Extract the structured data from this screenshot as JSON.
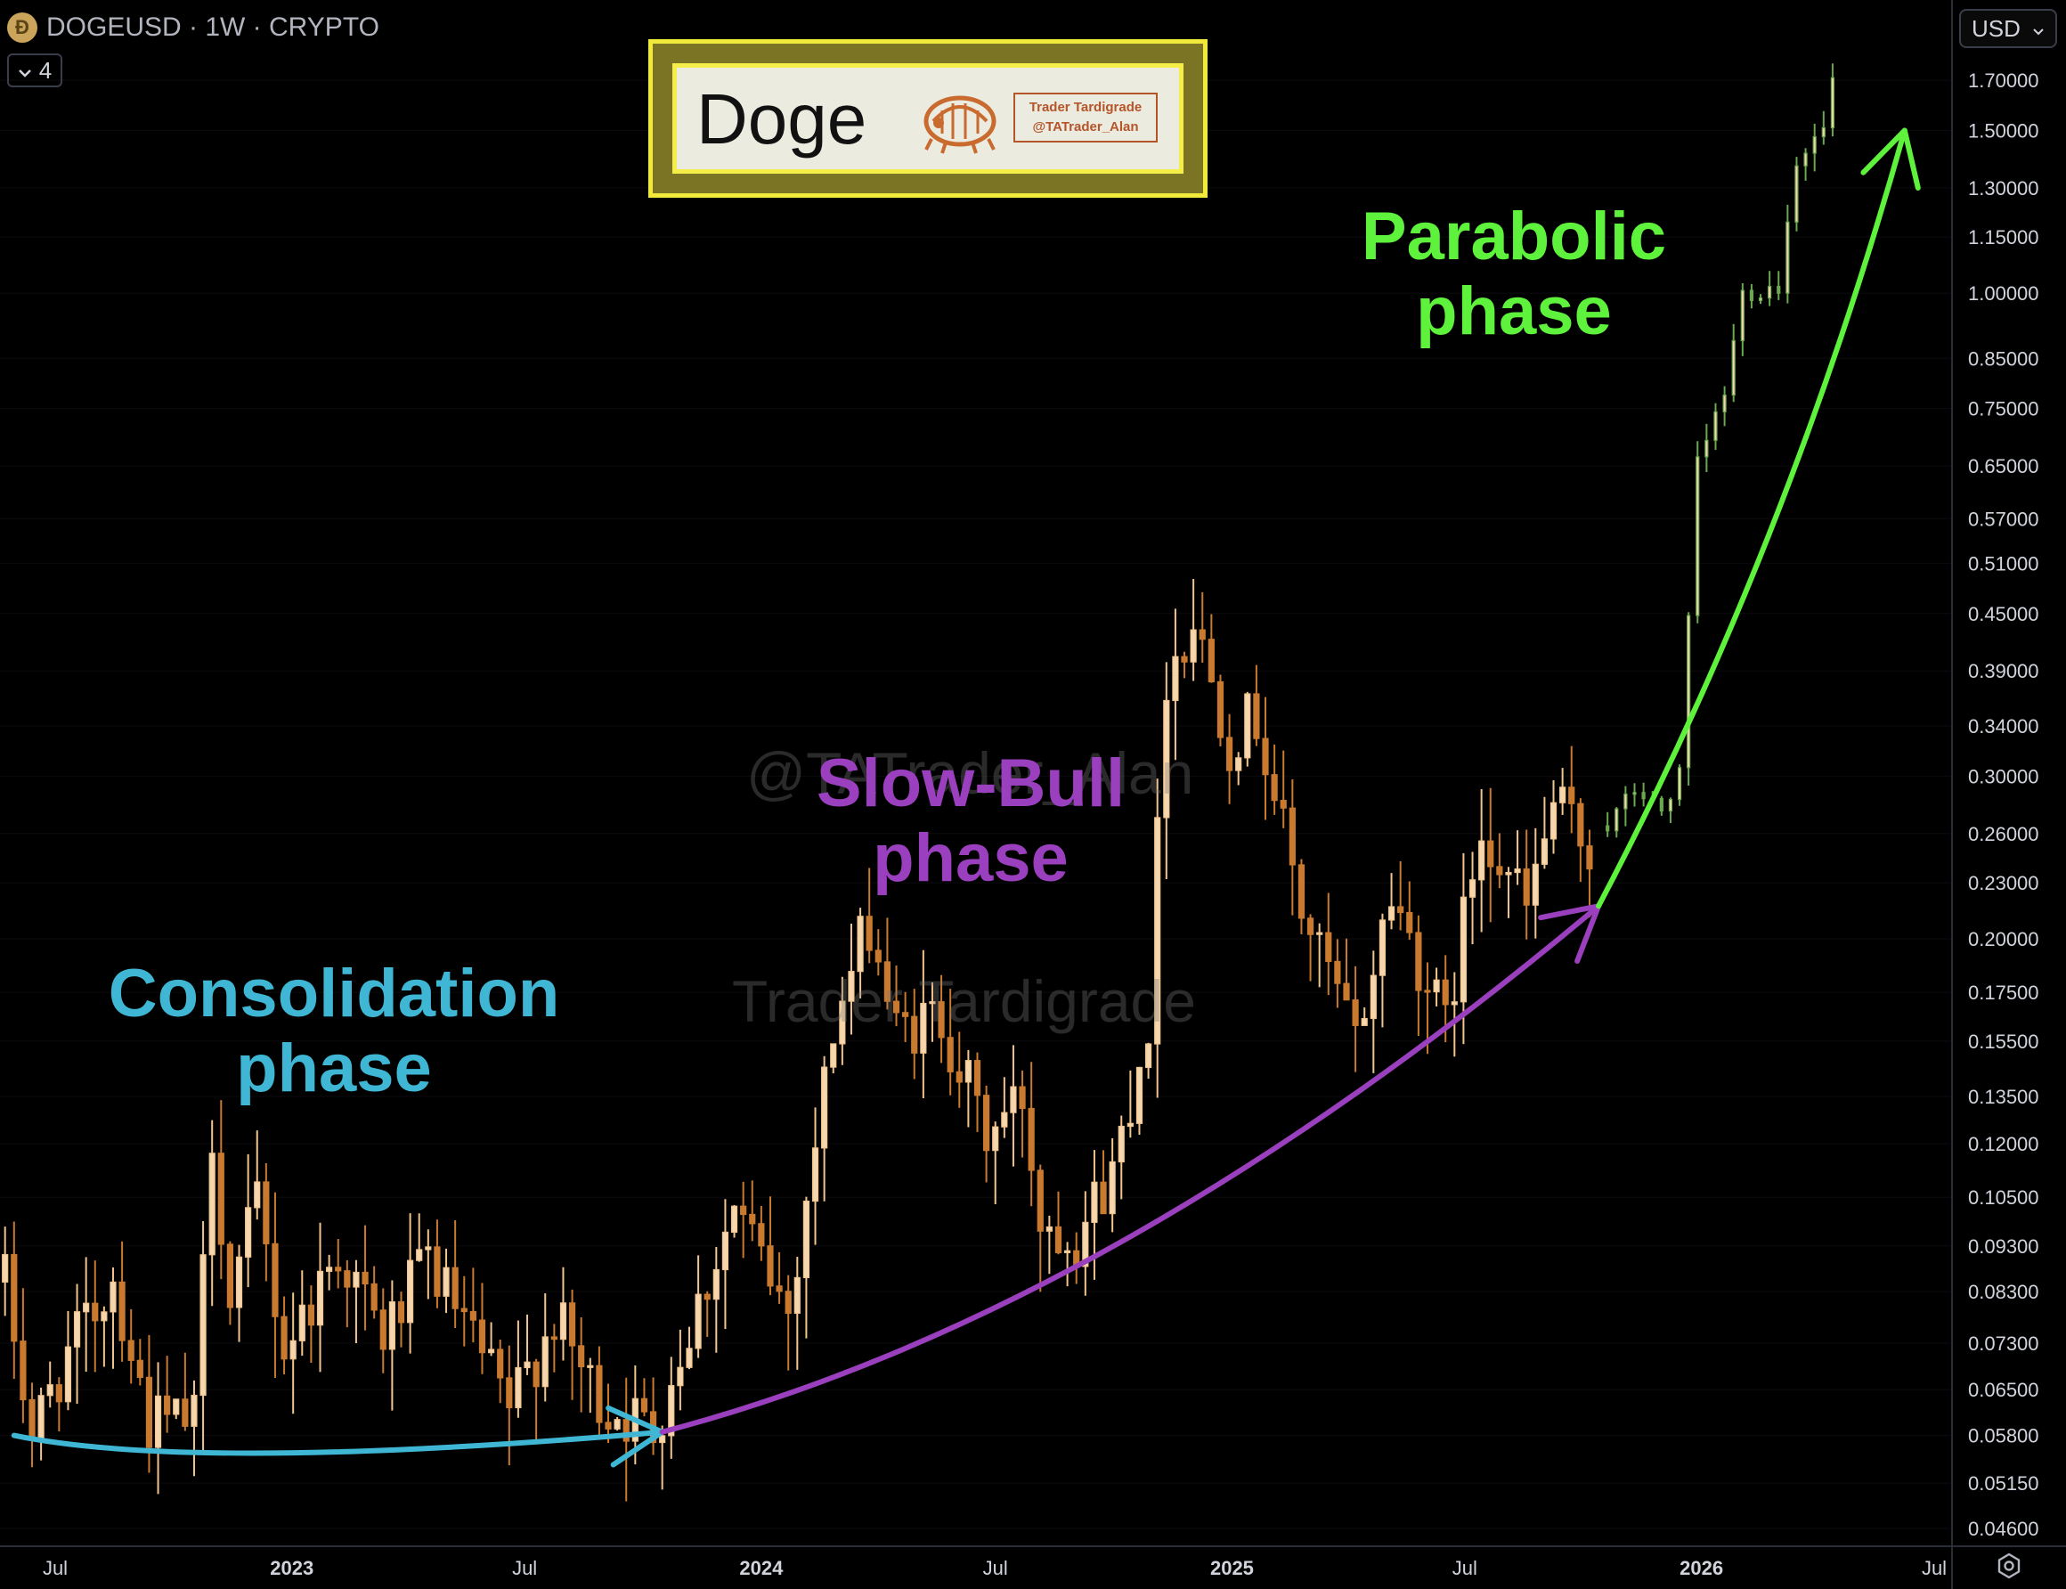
{
  "header": {
    "symbol": "DOGEUSD · 1W · CRYPTO",
    "indicator_count": "4",
    "currency": "USD"
  },
  "brand": {
    "title": "Doge",
    "tag_line1": "Trader Tardigrade",
    "tag_line2": "@TATrader_Alan"
  },
  "watermarks": [
    "@TATrader_Alan",
    "Trader Tardigrade"
  ],
  "phases": {
    "consolidation": [
      "Consolidation",
      "phase"
    ],
    "slow_bull": [
      "Slow-Bull",
      "phase"
    ],
    "parabolic": [
      "Parabolic",
      "phase"
    ]
  },
  "colors": {
    "bull_candle": "#f2c58f",
    "bear_candle": "#c97a2e",
    "projection_candle": "#6aa84f",
    "consolidation": "#3fb7d4",
    "slow_bull": "#9a3fbd",
    "parabolic": "#5ef23c"
  },
  "chart_data": {
    "type": "candlestick",
    "interval": "1W",
    "y_scale": "log",
    "ylim": [
      0.044,
      1.9
    ],
    "y_ticks": [
      "1.70000",
      "1.50000",
      "1.30000",
      "1.15000",
      "1.00000",
      "0.85000",
      "0.75000",
      "0.65000",
      "0.57000",
      "0.51000",
      "0.45000",
      "0.39000",
      "0.34000",
      "0.30000",
      "0.26000",
      "0.23000",
      "0.20000",
      "0.17500",
      "0.15500",
      "0.13500",
      "0.12000",
      "0.10500",
      "0.09300",
      "0.08300",
      "0.07300",
      "0.06500",
      "0.05800",
      "0.05150",
      "0.04600"
    ],
    "x_ticks": [
      {
        "label": "Jul",
        "date": "2022-07-01"
      },
      {
        "label": "2023",
        "date": "2023-01-01"
      },
      {
        "label": "Jul",
        "date": "2023-07-01"
      },
      {
        "label": "2024",
        "date": "2024-01-01"
      },
      {
        "label": "Jul",
        "date": "2024-07-01"
      },
      {
        "label": "2025",
        "date": "2025-01-01"
      },
      {
        "label": "Jul",
        "date": "2025-07-01"
      },
      {
        "label": "2026",
        "date": "2026-01-01"
      },
      {
        "label": "Jul",
        "date": "2026-07-01"
      }
    ],
    "price_path": [
      {
        "date": "2022-05-23",
        "close": 0.085
      },
      {
        "date": "2022-06-13",
        "close": 0.058
      },
      {
        "date": "2022-07-04",
        "close": 0.068
      },
      {
        "date": "2022-08-15",
        "close": 0.086
      },
      {
        "date": "2022-09-12",
        "close": 0.06
      },
      {
        "date": "2022-10-17",
        "close": 0.06
      },
      {
        "date": "2022-10-31",
        "close": 0.125
      },
      {
        "date": "2022-11-14",
        "close": 0.08
      },
      {
        "date": "2022-12-05",
        "close": 0.104
      },
      {
        "date": "2022-12-26",
        "close": 0.072
      },
      {
        "date": "2023-02-06",
        "close": 0.092
      },
      {
        "date": "2023-03-13",
        "close": 0.074
      },
      {
        "date": "2023-04-17",
        "close": 0.09
      },
      {
        "date": "2023-05-29",
        "close": 0.07
      },
      {
        "date": "2023-06-19",
        "close": 0.062
      },
      {
        "date": "2023-07-24",
        "close": 0.078
      },
      {
        "date": "2023-08-28",
        "close": 0.063
      },
      {
        "date": "2023-10-09",
        "close": 0.059
      },
      {
        "date": "2023-11-06",
        "close": 0.076
      },
      {
        "date": "2023-12-11",
        "close": 0.102
      },
      {
        "date": "2024-01-22",
        "close": 0.079
      },
      {
        "date": "2024-02-26",
        "close": 0.16
      },
      {
        "date": "2024-03-25",
        "close": 0.21
      },
      {
        "date": "2024-04-15",
        "close": 0.158
      },
      {
        "date": "2024-05-20",
        "close": 0.165
      },
      {
        "date": "2024-06-24",
        "close": 0.122
      },
      {
        "date": "2024-07-22",
        "close": 0.135
      },
      {
        "date": "2024-08-05",
        "close": 0.1
      },
      {
        "date": "2024-09-02",
        "close": 0.096
      },
      {
        "date": "2024-09-30",
        "close": 0.112
      },
      {
        "date": "2024-10-28",
        "close": 0.165
      },
      {
        "date": "2024-11-11",
        "close": 0.39
      },
      {
        "date": "2024-12-02",
        "close": 0.445
      },
      {
        "date": "2024-12-30",
        "close": 0.33
      },
      {
        "date": "2025-01-20",
        "close": 0.35
      },
      {
        "date": "2025-02-24",
        "close": 0.215
      },
      {
        "date": "2025-04-07",
        "close": 0.155
      },
      {
        "date": "2025-05-05",
        "close": 0.225
      },
      {
        "date": "2025-06-16",
        "close": 0.16
      },
      {
        "date": "2025-07-14",
        "close": 0.27
      },
      {
        "date": "2025-08-18",
        "close": 0.215
      },
      {
        "date": "2025-09-08",
        "close": 0.28
      },
      {
        "date": "2025-10-06",
        "close": 0.25
      }
    ],
    "projection_path": [
      {
        "date": "2025-10-20",
        "close": 0.265
      },
      {
        "date": "2025-11-10",
        "close": 0.29
      },
      {
        "date": "2025-12-01",
        "close": 0.275
      },
      {
        "date": "2025-12-15",
        "close": 0.3
      },
      {
        "date": "2025-12-29",
        "close": 0.65
      },
      {
        "date": "2026-01-19",
        "close": 0.78
      },
      {
        "date": "2026-02-02",
        "close": 1.0
      },
      {
        "date": "2026-03-02",
        "close": 1.02
      },
      {
        "date": "2026-03-16",
        "close": 1.4
      },
      {
        "date": "2026-04-06",
        "close": 1.5
      },
      {
        "date": "2026-04-13",
        "close": 1.7
      }
    ],
    "curves": [
      {
        "name": "Consolidation phase",
        "points": [
          [
            "2022-05-30",
            0.058
          ],
          [
            "2022-12-12",
            0.0555
          ],
          [
            "2023-10-16",
            0.0585
          ]
        ]
      },
      {
        "name": "Slow-Bull phase",
        "points": [
          [
            "2023-10-16",
            0.0585
          ],
          [
            "2024-10-07",
            0.094
          ],
          [
            "2025-10-13",
            0.217
          ]
        ]
      },
      {
        "name": "Parabolic phase",
        "points": [
          [
            "2025-10-13",
            0.217
          ],
          [
            "2026-02-23",
            0.55
          ],
          [
            "2026-06-08",
            1.5
          ]
        ]
      }
    ]
  }
}
